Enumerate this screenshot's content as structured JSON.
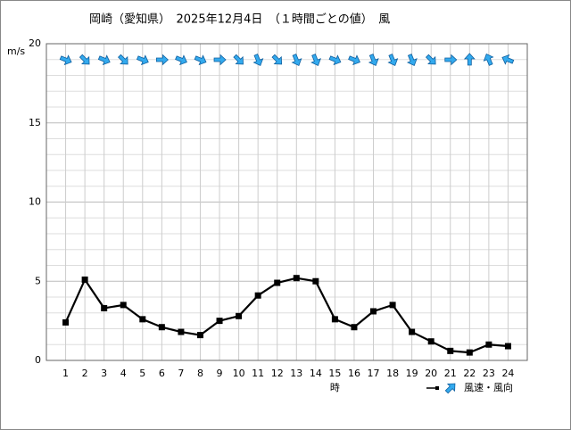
{
  "chart_data": {
    "type": "line",
    "title": "岡崎（愛知県）　2025年12月4日　（１時間ごとの値）　風",
    "y_label": "m/s",
    "x_label": "時",
    "legend": "lower right",
    "grid": true,
    "xlim": [
      0,
      25
    ],
    "xticks": [
      1,
      2,
      3,
      4,
      5,
      6,
      7,
      8,
      9,
      10,
      11,
      12,
      13,
      14,
      15,
      16,
      17,
      18,
      19,
      20,
      21,
      22,
      23,
      24
    ],
    "ylim": [
      0,
      20
    ],
    "yticks": [
      0,
      5,
      10,
      15,
      20
    ],
    "yminorticks": [
      1,
      2,
      3,
      4,
      6,
      7,
      8,
      9,
      11,
      12,
      13,
      14,
      16,
      17,
      18,
      19
    ],
    "x": [
      1,
      2,
      3,
      4,
      5,
      6,
      7,
      8,
      9,
      10,
      11,
      12,
      13,
      14,
      15,
      16,
      17,
      18,
      19,
      20,
      21,
      22,
      23,
      24
    ],
    "series": [
      {
        "name": "風速・風向",
        "color": "#000000",
        "arrow_color": "#33aaee",
        "values": [
          2.4,
          5.1,
          3.3,
          3.5,
          2.6,
          2.1,
          1.8,
          1.6,
          2.5,
          2.8,
          4.1,
          4.9,
          5.2,
          5.0,
          2.6,
          2.1,
          3.1,
          3.5,
          1.8,
          1.2,
          0.6,
          0.5,
          1.0,
          0.9
        ],
        "direction": [
          112.5,
          135,
          112.5,
          135,
          112.5,
          90,
          112.5,
          112.5,
          90,
          135,
          157.5,
          135,
          157.5,
          157.5,
          112.5,
          112.5,
          157.5,
          157.5,
          157.5,
          135,
          90,
          0,
          337.5,
          292.5
        ]
      }
    ]
  }
}
